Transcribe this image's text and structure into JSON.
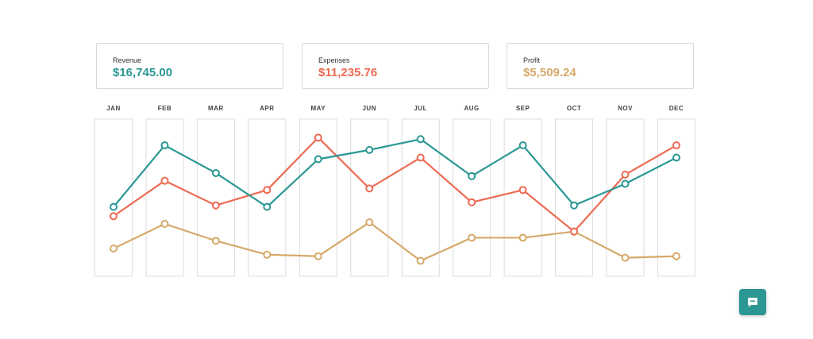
{
  "summary": {
    "revenue": {
      "label": "Revenue",
      "value": "$16,745.00"
    },
    "expenses": {
      "label": "Expenses",
      "value": "$11,235.76"
    },
    "profit": {
      "label": "Profit",
      "value": "$5,509.24"
    }
  },
  "colors": {
    "revenue": "#2a9793",
    "expenses": "#ee6a53",
    "profit": "#d6a96b"
  },
  "chat": {
    "icon": "chat-bubble-icon"
  },
  "chart_data": {
    "type": "line",
    "categories": [
      "JAN",
      "FEB",
      "MAR",
      "APR",
      "MAY",
      "JUN",
      "JUL",
      "AUG",
      "SEP",
      "OCT",
      "NOV",
      "DEC"
    ],
    "grid": false,
    "series": [
      {
        "name": "Revenue",
        "color": "#2a9793",
        "values": [
          44,
          84,
          66,
          44,
          75,
          81,
          88,
          64,
          84,
          45,
          59,
          76
        ]
      },
      {
        "name": "Expenses",
        "color": "#ee6a53",
        "values": [
          38,
          61,
          45,
          55,
          89,
          56,
          76,
          47,
          55,
          28,
          65,
          84
        ]
      },
      {
        "name": "Profit",
        "color": "#d6a96b",
        "values": [
          17,
          33,
          22,
          13,
          12,
          34,
          9,
          24,
          24,
          28,
          11,
          12
        ]
      }
    ],
    "ylim": [
      0,
      100
    ]
  }
}
